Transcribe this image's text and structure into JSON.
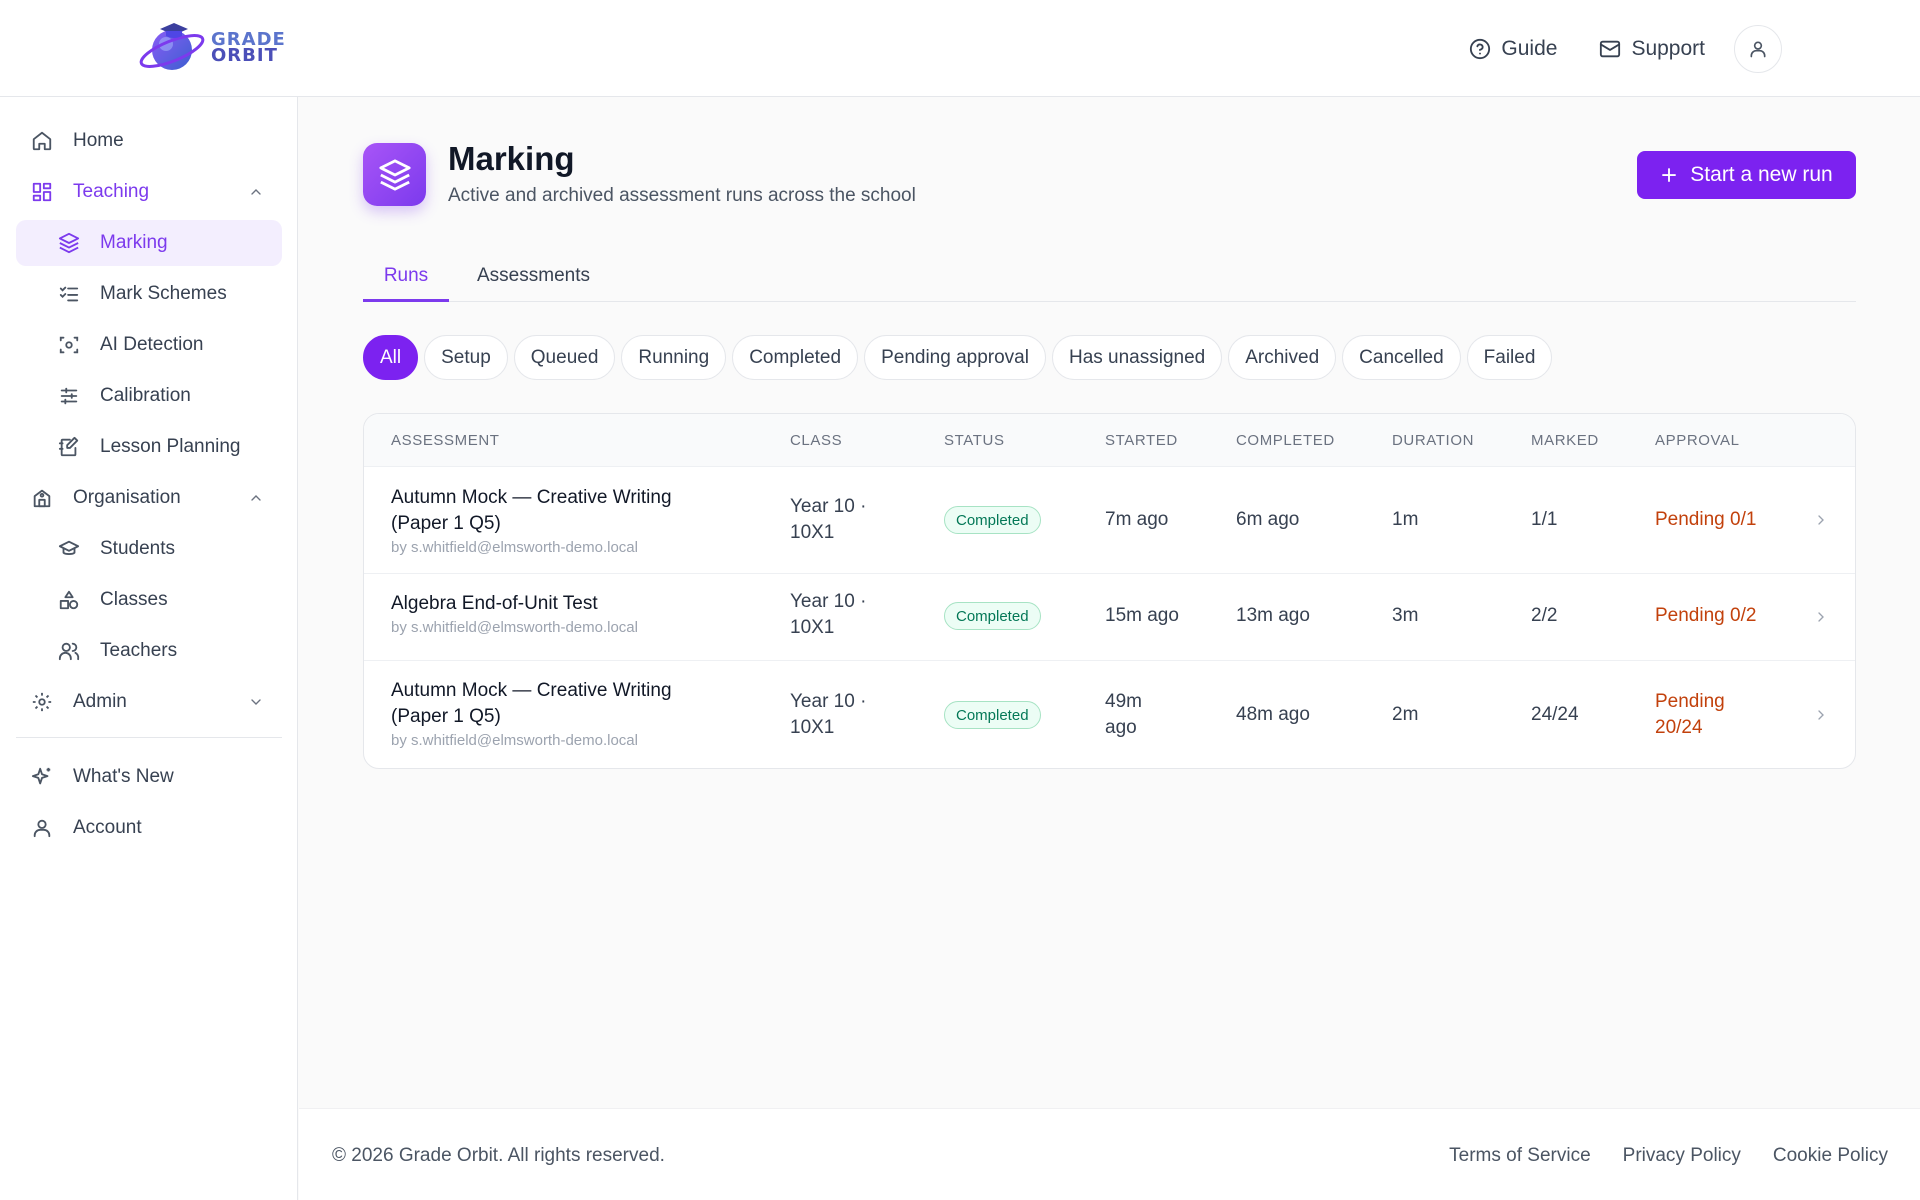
{
  "brand": {
    "name_line1": "GRADE",
    "name_line2": "ORBIT"
  },
  "header": {
    "guide_label": "Guide",
    "support_label": "Support"
  },
  "sidebar": {
    "home": "Home",
    "teaching": "Teaching",
    "marking": "Marking",
    "mark_schemes": "Mark Schemes",
    "ai_detection": "AI Detection",
    "calibration": "Calibration",
    "lesson_planning": "Lesson Planning",
    "organisation": "Organisation",
    "students": "Students",
    "classes": "Classes",
    "teachers": "Teachers",
    "admin": "Admin",
    "whats_new": "What's New",
    "account": "Account"
  },
  "page": {
    "title": "Marking",
    "subtitle": "Active and archived assessment runs across the school",
    "new_run_label": "Start a new run"
  },
  "tabs": [
    "Runs",
    "Assessments"
  ],
  "filters": [
    "All",
    "Setup",
    "Queued",
    "Running",
    "Completed",
    "Pending approval",
    "Has unassigned",
    "Archived",
    "Cancelled",
    "Failed"
  ],
  "table": {
    "columns": [
      "ASSESSMENT",
      "CLASS",
      "STATUS",
      "STARTED",
      "COMPLETED",
      "DURATION",
      "MARKED",
      "APPROVAL"
    ],
    "rows": [
      {
        "title_line1": "Autumn Mock — Creative Writing",
        "title_line2": "(Paper 1 Q5)",
        "by": "by s.whitfield@elmsworth-demo.local",
        "class_line1": "Year 10 ·",
        "class_line2": "10X1",
        "status": "Completed",
        "started_line1": "7m ago",
        "started_line2": "",
        "completed": "6m ago",
        "duration": "1m",
        "marked": "1/1",
        "approval_line1": "Pending 0/1",
        "approval_line2": ""
      },
      {
        "title_line1": "Algebra End-of-Unit Test",
        "title_line2": "",
        "by": "by s.whitfield@elmsworth-demo.local",
        "class_line1": "Year 10 ·",
        "class_line2": "10X1",
        "status": "Completed",
        "started_line1": "15m ago",
        "started_line2": "",
        "completed": "13m ago",
        "duration": "3m",
        "marked": "2/2",
        "approval_line1": "Pending 0/2",
        "approval_line2": ""
      },
      {
        "title_line1": "Autumn Mock — Creative Writing",
        "title_line2": "(Paper 1 Q5)",
        "by": "by s.whitfield@elmsworth-demo.local",
        "class_line1": "Year 10 ·",
        "class_line2": "10X1",
        "status": "Completed",
        "started_line1": "49m",
        "started_line2": "ago",
        "completed": "48m ago",
        "duration": "2m",
        "marked": "24/24",
        "approval_line1": "Pending",
        "approval_line2": "20/24"
      }
    ]
  },
  "footer": {
    "copyright": "© 2026 Grade Orbit. All rights reserved.",
    "terms": "Terms of Service",
    "privacy": "Privacy Policy",
    "cookie": "Cookie Policy"
  },
  "colors": {
    "accent": "#7c22f0",
    "approval": "#c2410c",
    "status_green": "#047857"
  }
}
